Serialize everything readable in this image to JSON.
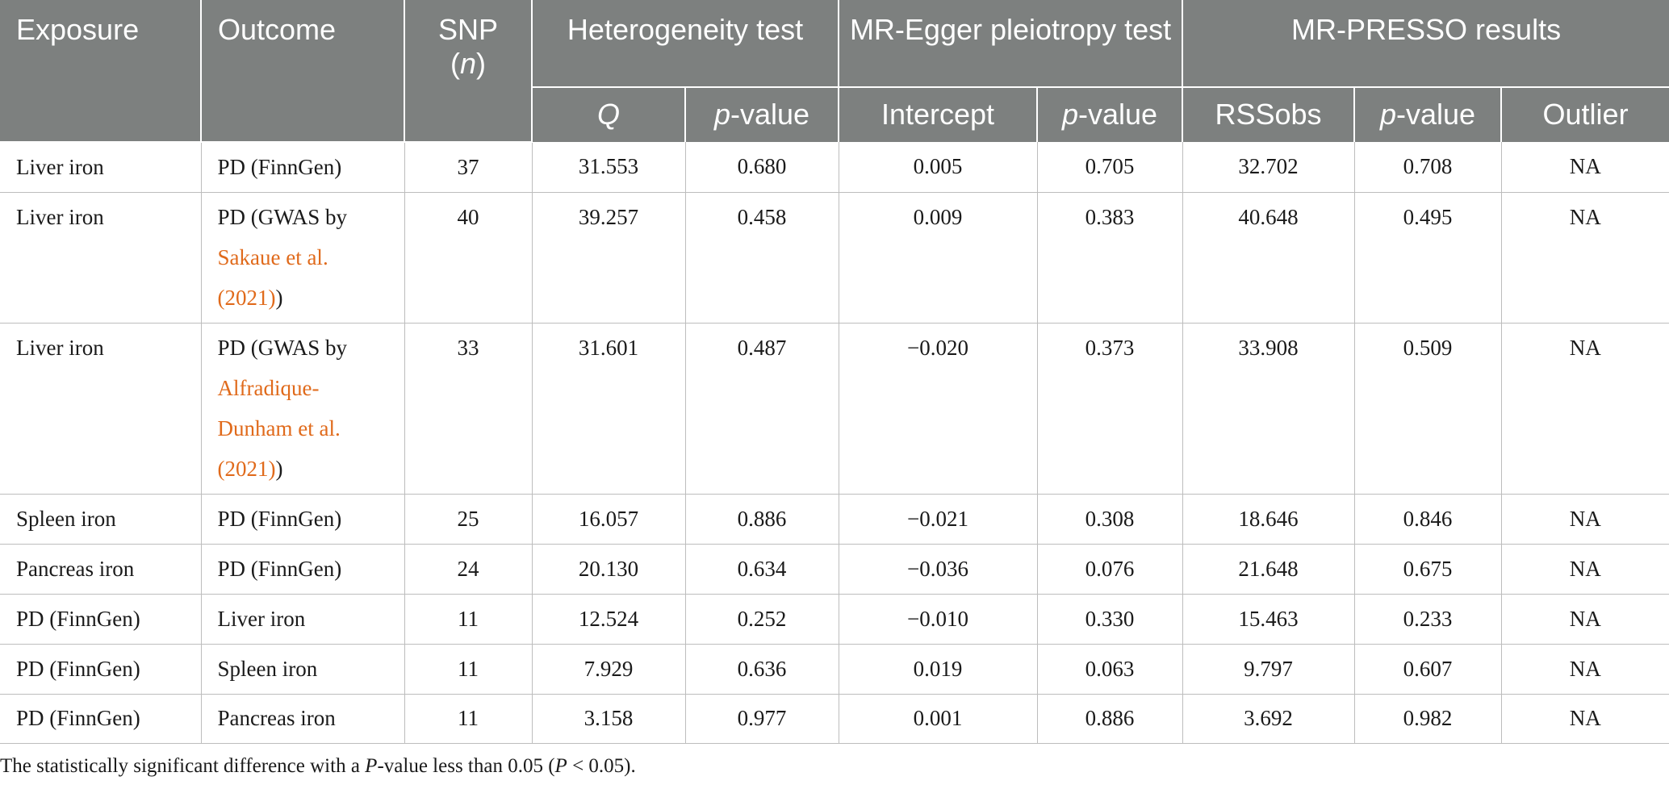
{
  "headers": {
    "exposure": "Exposure",
    "outcome": "Outcome",
    "snp": "SNP",
    "snp_n": "n",
    "heterogeneity": "Heterogeneity test",
    "egger": "MR-Egger pleiotropy test",
    "presso": "MR-PRESSO results",
    "q": "Q",
    "p_prefix": "p",
    "p_suffix": "-value",
    "intercept": "Intercept",
    "rssobs": "RSSobs",
    "outlier": "Outlier"
  },
  "rows": [
    {
      "exposure": "Liver iron",
      "outcome": "PD (FinnGen)",
      "snp": "37",
      "q": "31.553",
      "q_p": "0.680",
      "intercept": "0.005",
      "egger_p": "0.705",
      "rssobs": "32.702",
      "presso_p": "0.708",
      "outlier": "NA"
    },
    {
      "exposure": "Liver iron",
      "outcome_pre": "PD (GWAS by",
      "outcome_ref_1": "Sakaue et al.",
      "outcome_ref_2": "(2021)",
      "outcome_post": ")",
      "snp": "40",
      "q": "39.257",
      "q_p": "0.458",
      "intercept": "0.009",
      "egger_p": "0.383",
      "rssobs": "40.648",
      "presso_p": "0.495",
      "outlier": "NA"
    },
    {
      "exposure": "Liver iron",
      "outcome_pre": "PD (GWAS by",
      "outcome_ref_1": "Alfradique-",
      "outcome_ref_2": "Dunham et al.",
      "outcome_ref_3": "(2021)",
      "outcome_post": ")",
      "snp": "33",
      "q": "31.601",
      "q_p": "0.487",
      "intercept": "−0.020",
      "egger_p": "0.373",
      "rssobs": "33.908",
      "presso_p": "0.509",
      "outlier": "NA"
    },
    {
      "exposure": "Spleen iron",
      "outcome": "PD (FinnGen)",
      "snp": "25",
      "q": "16.057",
      "q_p": "0.886",
      "intercept": "−0.021",
      "egger_p": "0.308",
      "rssobs": "18.646",
      "presso_p": "0.846",
      "outlier": "NA"
    },
    {
      "exposure": "Pancreas iron",
      "outcome": "PD (FinnGen)",
      "snp": "24",
      "q": "20.130",
      "q_p": "0.634",
      "intercept": "−0.036",
      "egger_p": "0.076",
      "rssobs": "21.648",
      "presso_p": "0.675",
      "outlier": "NA"
    },
    {
      "exposure": "PD (FinnGen)",
      "outcome": "Liver iron",
      "snp": "11",
      "q": "12.524",
      "q_p": "0.252",
      "intercept": "−0.010",
      "egger_p": "0.330",
      "rssobs": "15.463",
      "presso_p": "0.233",
      "outlier": "NA"
    },
    {
      "exposure": "PD (FinnGen)",
      "outcome": "Spleen iron",
      "snp": "11",
      "q": "7.929",
      "q_p": "0.636",
      "intercept": "0.019",
      "egger_p": "0.063",
      "rssobs": "9.797",
      "presso_p": "0.607",
      "outlier": "NA"
    },
    {
      "exposure": "PD (FinnGen)",
      "outcome": "Pancreas iron",
      "snp": "11",
      "q": "3.158",
      "q_p": "0.977",
      "intercept": "0.001",
      "egger_p": "0.886",
      "rssobs": "3.692",
      "presso_p": "0.982",
      "outlier": "NA"
    }
  ],
  "footnote": {
    "pre": "The statistically significant difference with a ",
    "p1": "P",
    "mid": "-value less than 0.05 (",
    "p2": "P",
    "post": " < 0.05)."
  },
  "colors": {
    "header_bg": "#7d807f",
    "header_text": "#ffffff",
    "reference_link": "#e06a1b",
    "grid": "#bdbdbd"
  }
}
